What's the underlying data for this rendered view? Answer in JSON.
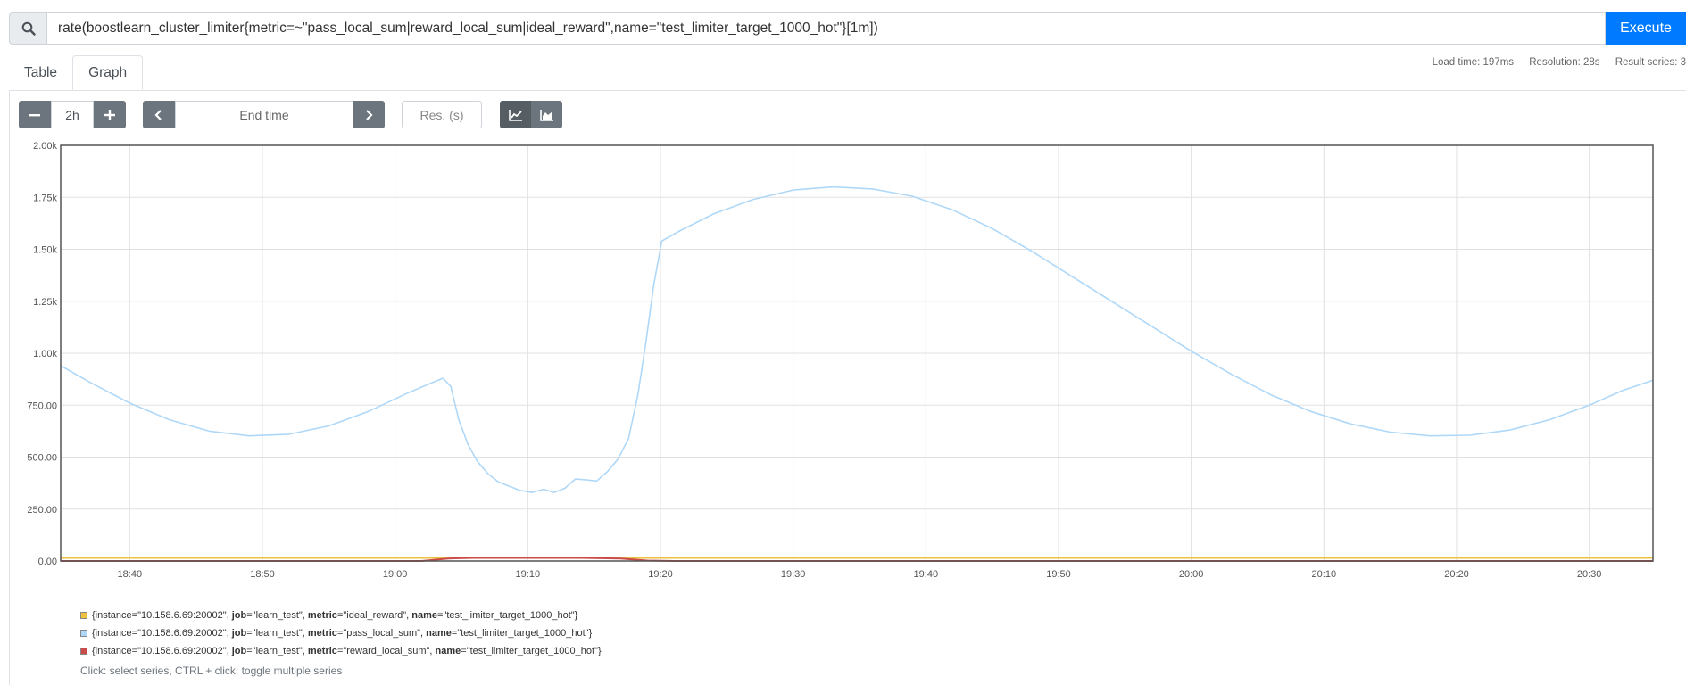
{
  "query": {
    "search_icon": "search-icon",
    "expression": "rate(boostlearn_cluster_limiter{metric=~\"pass_local_sum|reward_local_sum|ideal_reward\",name=\"test_limiter_target_1000_hot\"}[1m])",
    "execute_label": "Execute"
  },
  "tabs": [
    {
      "label": "Table",
      "active": false
    },
    {
      "label": "Graph",
      "active": true
    }
  ],
  "stats": {
    "load_time": "Load time: 197ms",
    "resolution": "Resolution: 28s",
    "result_series": "Result series: 3"
  },
  "controls": {
    "minus_icon": "minus-icon",
    "range": "2h",
    "plus_icon": "plus-icon",
    "prev_icon": "chevron-left-icon",
    "end_time_placeholder": "End time",
    "next_icon": "chevron-right-icon",
    "resolution_placeholder": "Res. (s)",
    "line_icon": "line-chart-icon",
    "stacked_icon": "area-chart-icon"
  },
  "legend": {
    "series": [
      {
        "color": "#edc240",
        "parts": [
          [
            "{instance=\"10.158.6.69:20002\", "
          ],
          [
            "job",
            "b"
          ],
          [
            "=\"learn_test\", "
          ],
          [
            "metric",
            "b"
          ],
          [
            "=\"ideal_reward\", "
          ],
          [
            "name",
            "b"
          ],
          [
            "=\"test_limiter_target_1000_hot\"}"
          ]
        ]
      },
      {
        "color": "#afd8f8",
        "parts": [
          [
            "{instance=\"10.158.6.69:20002\", "
          ],
          [
            "job",
            "b"
          ],
          [
            "=\"learn_test\", "
          ],
          [
            "metric",
            "b"
          ],
          [
            "=\"pass_local_sum\", "
          ],
          [
            "name",
            "b"
          ],
          [
            "=\"test_limiter_target_1000_hot\"}"
          ]
        ]
      },
      {
        "color": "#cb4b4b",
        "parts": [
          [
            "{instance=\"10.158.6.69:20002\", "
          ],
          [
            "job",
            "b"
          ],
          [
            "=\"learn_test\", "
          ],
          [
            "metric",
            "b"
          ],
          [
            "=\"reward_local_sum\", "
          ],
          [
            "name",
            "b"
          ],
          [
            "=\"test_limiter_target_1000_hot\"}"
          ]
        ]
      }
    ],
    "hint": "Click: select series, CTRL + click: toggle multiple series"
  },
  "chart_data": {
    "type": "line",
    "y_ticks": [
      "0.00",
      "250.00",
      "500.00",
      "750.00",
      "1.00k",
      "1.25k",
      "1.50k",
      "1.75k",
      "2.00k"
    ],
    "ylim": [
      0,
      2000
    ],
    "x_ticks": [
      "18:40",
      "18:50",
      "19:00",
      "19:10",
      "19:20",
      "19:30",
      "19:40",
      "19:50",
      "20:00",
      "20:10",
      "20:20",
      "20:30"
    ],
    "x_tick_minutes": [
      40,
      50,
      60,
      70,
      80,
      90,
      100,
      110,
      120,
      130,
      140,
      150
    ],
    "xlim_minutes": [
      34.8,
      154.8
    ],
    "grid": true,
    "legend_position": "bottom",
    "series": [
      {
        "color": "#edc240",
        "points": [
          [
            34.8,
            15
          ],
          [
            154.8,
            15
          ]
        ]
      },
      {
        "color": "#afd8f8",
        "points": [
          [
            34.8,
            940
          ],
          [
            37,
            860
          ],
          [
            40,
            760
          ],
          [
            43,
            680
          ],
          [
            46,
            625
          ],
          [
            49,
            602
          ],
          [
            52,
            610
          ],
          [
            55,
            650
          ],
          [
            58,
            720
          ],
          [
            61,
            810
          ],
          [
            63.6,
            880
          ],
          [
            64.2,
            840
          ],
          [
            64.8,
            680
          ],
          [
            65.5,
            560
          ],
          [
            66.2,
            480
          ],
          [
            67,
            420
          ],
          [
            67.8,
            380
          ],
          [
            68.6,
            360
          ],
          [
            69.4,
            340
          ],
          [
            70.3,
            330
          ],
          [
            71.2,
            345
          ],
          [
            72,
            330
          ],
          [
            72.8,
            350
          ],
          [
            73.6,
            395
          ],
          [
            74.4,
            390
          ],
          [
            75.2,
            385
          ],
          [
            76,
            430
          ],
          [
            76.8,
            490
          ],
          [
            77.6,
            590
          ],
          [
            78.3,
            800
          ],
          [
            78.9,
            1050
          ],
          [
            79.5,
            1330
          ],
          [
            80.1,
            1540
          ],
          [
            81.5,
            1590
          ],
          [
            84,
            1670
          ],
          [
            87,
            1740
          ],
          [
            90,
            1785
          ],
          [
            93,
            1800
          ],
          [
            96,
            1790
          ],
          [
            99,
            1755
          ],
          [
            102,
            1690
          ],
          [
            105,
            1600
          ],
          [
            108,
            1490
          ],
          [
            111,
            1370
          ],
          [
            114,
            1250
          ],
          [
            117,
            1130
          ],
          [
            120,
            1010
          ],
          [
            123,
            900
          ],
          [
            126,
            800
          ],
          [
            129,
            720
          ],
          [
            132,
            660
          ],
          [
            135,
            620
          ],
          [
            138,
            602
          ],
          [
            141,
            605
          ],
          [
            144,
            630
          ],
          [
            147,
            680
          ],
          [
            150,
            750
          ],
          [
            152.5,
            820
          ],
          [
            154.8,
            870
          ]
        ]
      },
      {
        "color": "#cb4b4b",
        "points": [
          [
            34.8,
            0
          ],
          [
            62,
            0
          ],
          [
            64,
            12
          ],
          [
            66,
            15
          ],
          [
            74,
            15
          ],
          [
            77,
            12
          ],
          [
            79,
            2
          ],
          [
            81,
            0
          ],
          [
            154.8,
            0
          ]
        ]
      }
    ]
  }
}
